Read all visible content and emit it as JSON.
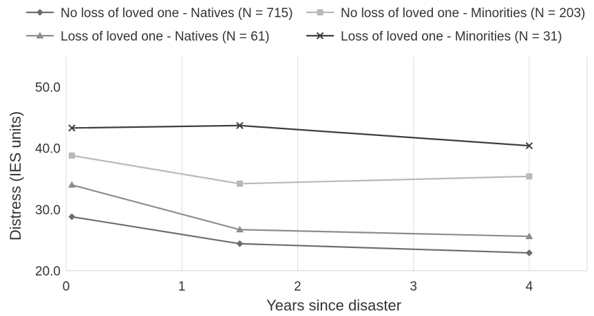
{
  "chart_data": {
    "type": "line",
    "title": "",
    "xlabel": "Years since disaster",
    "ylabel": "Distress (IES units)",
    "xlim": [
      0,
      4.5
    ],
    "ylim": [
      20,
      55
    ],
    "x_ticks": [
      "0",
      "1",
      "2",
      "3",
      "4"
    ],
    "y_ticks": [
      "20.0",
      "30.0",
      "40.0",
      "50.0"
    ],
    "grid": "vertical",
    "legend_position": "top",
    "series": [
      {
        "name": "No loss of loved one - Natives (N = 715)",
        "marker": "diamond",
        "color": "#6d6d6d",
        "x": [
          0.05,
          1.5,
          4
        ],
        "y": [
          28.8,
          24.4,
          22.9
        ]
      },
      {
        "name": "No loss of loved one - Minorities (N = 203)",
        "marker": "square",
        "color": "#b8b8b8",
        "x": [
          0.05,
          1.5,
          4
        ],
        "y": [
          38.8,
          34.2,
          35.4
        ]
      },
      {
        "name": "Loss of loved one - Natives (N = 61)",
        "marker": "triangle",
        "color": "#8c8c8c",
        "x": [
          0.05,
          1.5,
          4
        ],
        "y": [
          34.0,
          26.7,
          25.6
        ]
      },
      {
        "name": "Loss of loved one - Minorities (N = 31)",
        "marker": "x",
        "color": "#3d3d3d",
        "x": [
          0.05,
          1.5,
          4
        ],
        "y": [
          43.3,
          43.7,
          40.4
        ]
      }
    ]
  }
}
